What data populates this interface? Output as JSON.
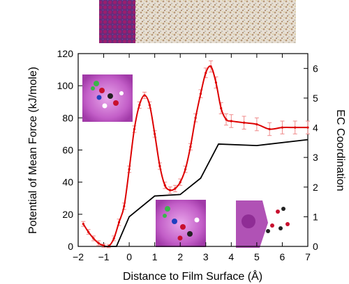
{
  "chart_data": {
    "type": "line",
    "xlabel": "Distance to Film Surface (Å)",
    "ylabel": "Potential of Mean Force (kJ/mole)",
    "y2label": "EC Coordination",
    "xlim": [
      -2,
      7
    ],
    "ylim": [
      0,
      120
    ],
    "y2lim": [
      0,
      6.5
    ],
    "xticks": [
      "−2",
      "−1",
      "0",
      "1",
      "2",
      "3",
      "4",
      "5",
      "6",
      "7"
    ],
    "yticks": [
      "0",
      "20",
      "40",
      "60",
      "80",
      "100",
      "120"
    ],
    "y2ticks": [
      "0",
      "1",
      "2",
      "3",
      "4",
      "5",
      "6"
    ],
    "grid": false,
    "series": [
      {
        "color": "#dd0000",
        "axis": "left",
        "x": [
          -1.8,
          -1.6,
          -1.4,
          -1.2,
          -1.0,
          -0.8,
          -0.6,
          -0.4,
          -0.2,
          0.0,
          0.2,
          0.4,
          0.6,
          0.8,
          1.0,
          1.2,
          1.4,
          1.6,
          1.8,
          2.0,
          2.2,
          2.4,
          2.6,
          2.8,
          3.0,
          3.2,
          3.4,
          3.6,
          3.8,
          4.0,
          4.5,
          5.0,
          5.5,
          6.0,
          6.5,
          7.0
        ],
        "y": [
          14,
          9,
          5,
          2,
          0.5,
          0.2,
          5,
          15,
          25,
          48,
          73,
          88,
          94,
          88,
          70,
          50,
          38,
          35,
          36,
          40,
          48,
          62,
          80,
          95,
          108,
          112,
          102,
          86,
          79,
          78,
          77,
          76,
          73,
          74,
          74,
          74
        ],
        "err": [
          1.5,
          1.5,
          1.5,
          1.5,
          1,
          1,
          1.5,
          2,
          2,
          2,
          2,
          2,
          2,
          2,
          2,
          2,
          2,
          2,
          2,
          2,
          2,
          2,
          2.5,
          2.5,
          3,
          3.5,
          3.5,
          3.5,
          3.5,
          4,
          4,
          4,
          4,
          4,
          4,
          4
        ]
      },
      {
        "color": "#000000",
        "axis": "right",
        "x": [
          -1.0,
          -0.5,
          0.0,
          1.0,
          2.0,
          2.8,
          3.5,
          5.0,
          7.0
        ],
        "y": [
          0,
          0,
          1.0,
          1.7,
          1.75,
          2.3,
          3.45,
          3.4,
          3.6
        ]
      }
    ]
  },
  "images": {
    "top_strip": "molecular-simulation-snapshot",
    "inset_left": "molecule-cluster-render",
    "inset_middle": "molecule-cluster-render",
    "inset_right": "molecule-cluster-render"
  }
}
